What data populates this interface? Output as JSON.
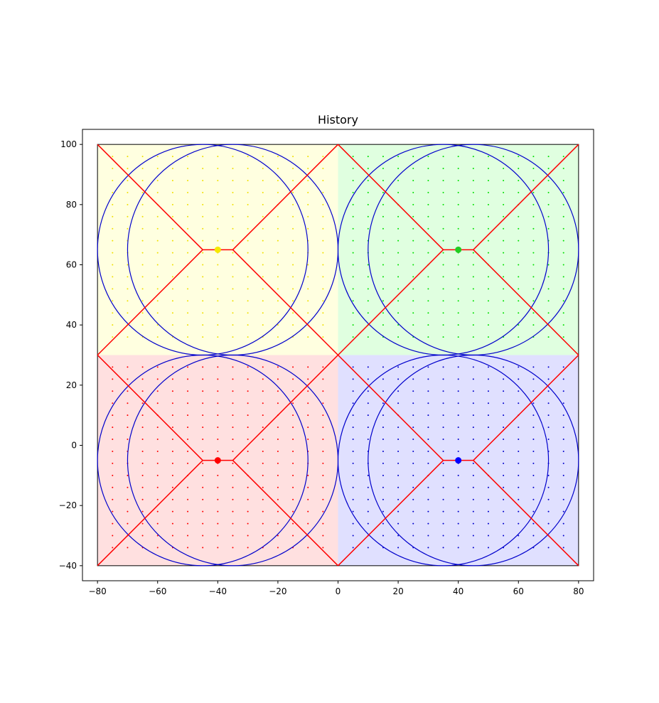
{
  "chart_data": {
    "type": "scatter",
    "title": "History",
    "xlabel": "",
    "ylabel": "",
    "xlim": [
      -85,
      85
    ],
    "ylim": [
      -45,
      105
    ],
    "x_ticks": [
      -80,
      -60,
      -40,
      -20,
      0,
      20,
      40,
      60,
      80
    ],
    "y_ticks": [
      -40,
      -20,
      0,
      20,
      40,
      60,
      80,
      100
    ],
    "grid": false,
    "legend": "none",
    "regions": [
      {
        "x": [
          -80,
          0
        ],
        "y": [
          30,
          100
        ],
        "fill": "#ffffe0",
        "dot_color": "#f0e000",
        "center": [
          -40,
          65
        ],
        "center_color": "#f5e800"
      },
      {
        "x": [
          0,
          80
        ],
        "y": [
          30,
          100
        ],
        "fill": "#e0ffe0",
        "dot_color": "#00e000",
        "center": [
          40,
          65
        ],
        "center_color": "#22cc22"
      },
      {
        "x": [
          -80,
          0
        ],
        "y": [
          -40,
          30
        ],
        "fill": "#ffe0e0",
        "dot_color": "#ff0000",
        "center": [
          -40,
          -5
        ],
        "center_color": "#ff0000"
      },
      {
        "x": [
          0,
          80
        ],
        "y": [
          -40,
          30
        ],
        "fill": "#e0e0ff",
        "dot_color": "#0000cc",
        "center": [
          40,
          -5
        ],
        "center_color": "#0000ff"
      }
    ],
    "dot_grid": {
      "x_start": -75,
      "x_end": 75,
      "x_step": 5,
      "y_values": [
        -34,
        -30,
        -26,
        -22,
        -18,
        -14,
        -10,
        -6,
        -2,
        2,
        6,
        10,
        14,
        18,
        22,
        26,
        36,
        40,
        44,
        48,
        52,
        56,
        60,
        64,
        68,
        72,
        76,
        80,
        84,
        88,
        92,
        96
      ]
    },
    "circles": [
      {
        "cx": -45,
        "cy": 65,
        "r": 35
      },
      {
        "cx": -35,
        "cy": 65,
        "r": 35
      },
      {
        "cx": 35,
        "cy": 65,
        "r": 35
      },
      {
        "cx": 45,
        "cy": 65,
        "r": 35
      },
      {
        "cx": -45,
        "cy": -5,
        "r": 35
      },
      {
        "cx": -35,
        "cy": -5,
        "r": 35
      },
      {
        "cx": 35,
        "cy": -5,
        "r": 35
      },
      {
        "cx": 45,
        "cy": -5,
        "r": 35
      }
    ],
    "circle_color": "#0000cc",
    "skeleton_color": "#ff0000",
    "skeletons": [
      {
        "center": [
          -40,
          65
        ],
        "half_width": 5,
        "x": [
          -80,
          0
        ],
        "y": [
          30,
          100
        ]
      },
      {
        "center": [
          40,
          65
        ],
        "half_width": 5,
        "x": [
          0,
          80
        ],
        "y": [
          30,
          100
        ]
      },
      {
        "center": [
          -40,
          -5
        ],
        "half_width": 5,
        "x": [
          -80,
          0
        ],
        "y": [
          -40,
          30
        ]
      },
      {
        "center": [
          40,
          -5
        ],
        "half_width": 5,
        "x": [
          0,
          80
        ],
        "y": [
          -40,
          30
        ]
      }
    ]
  }
}
